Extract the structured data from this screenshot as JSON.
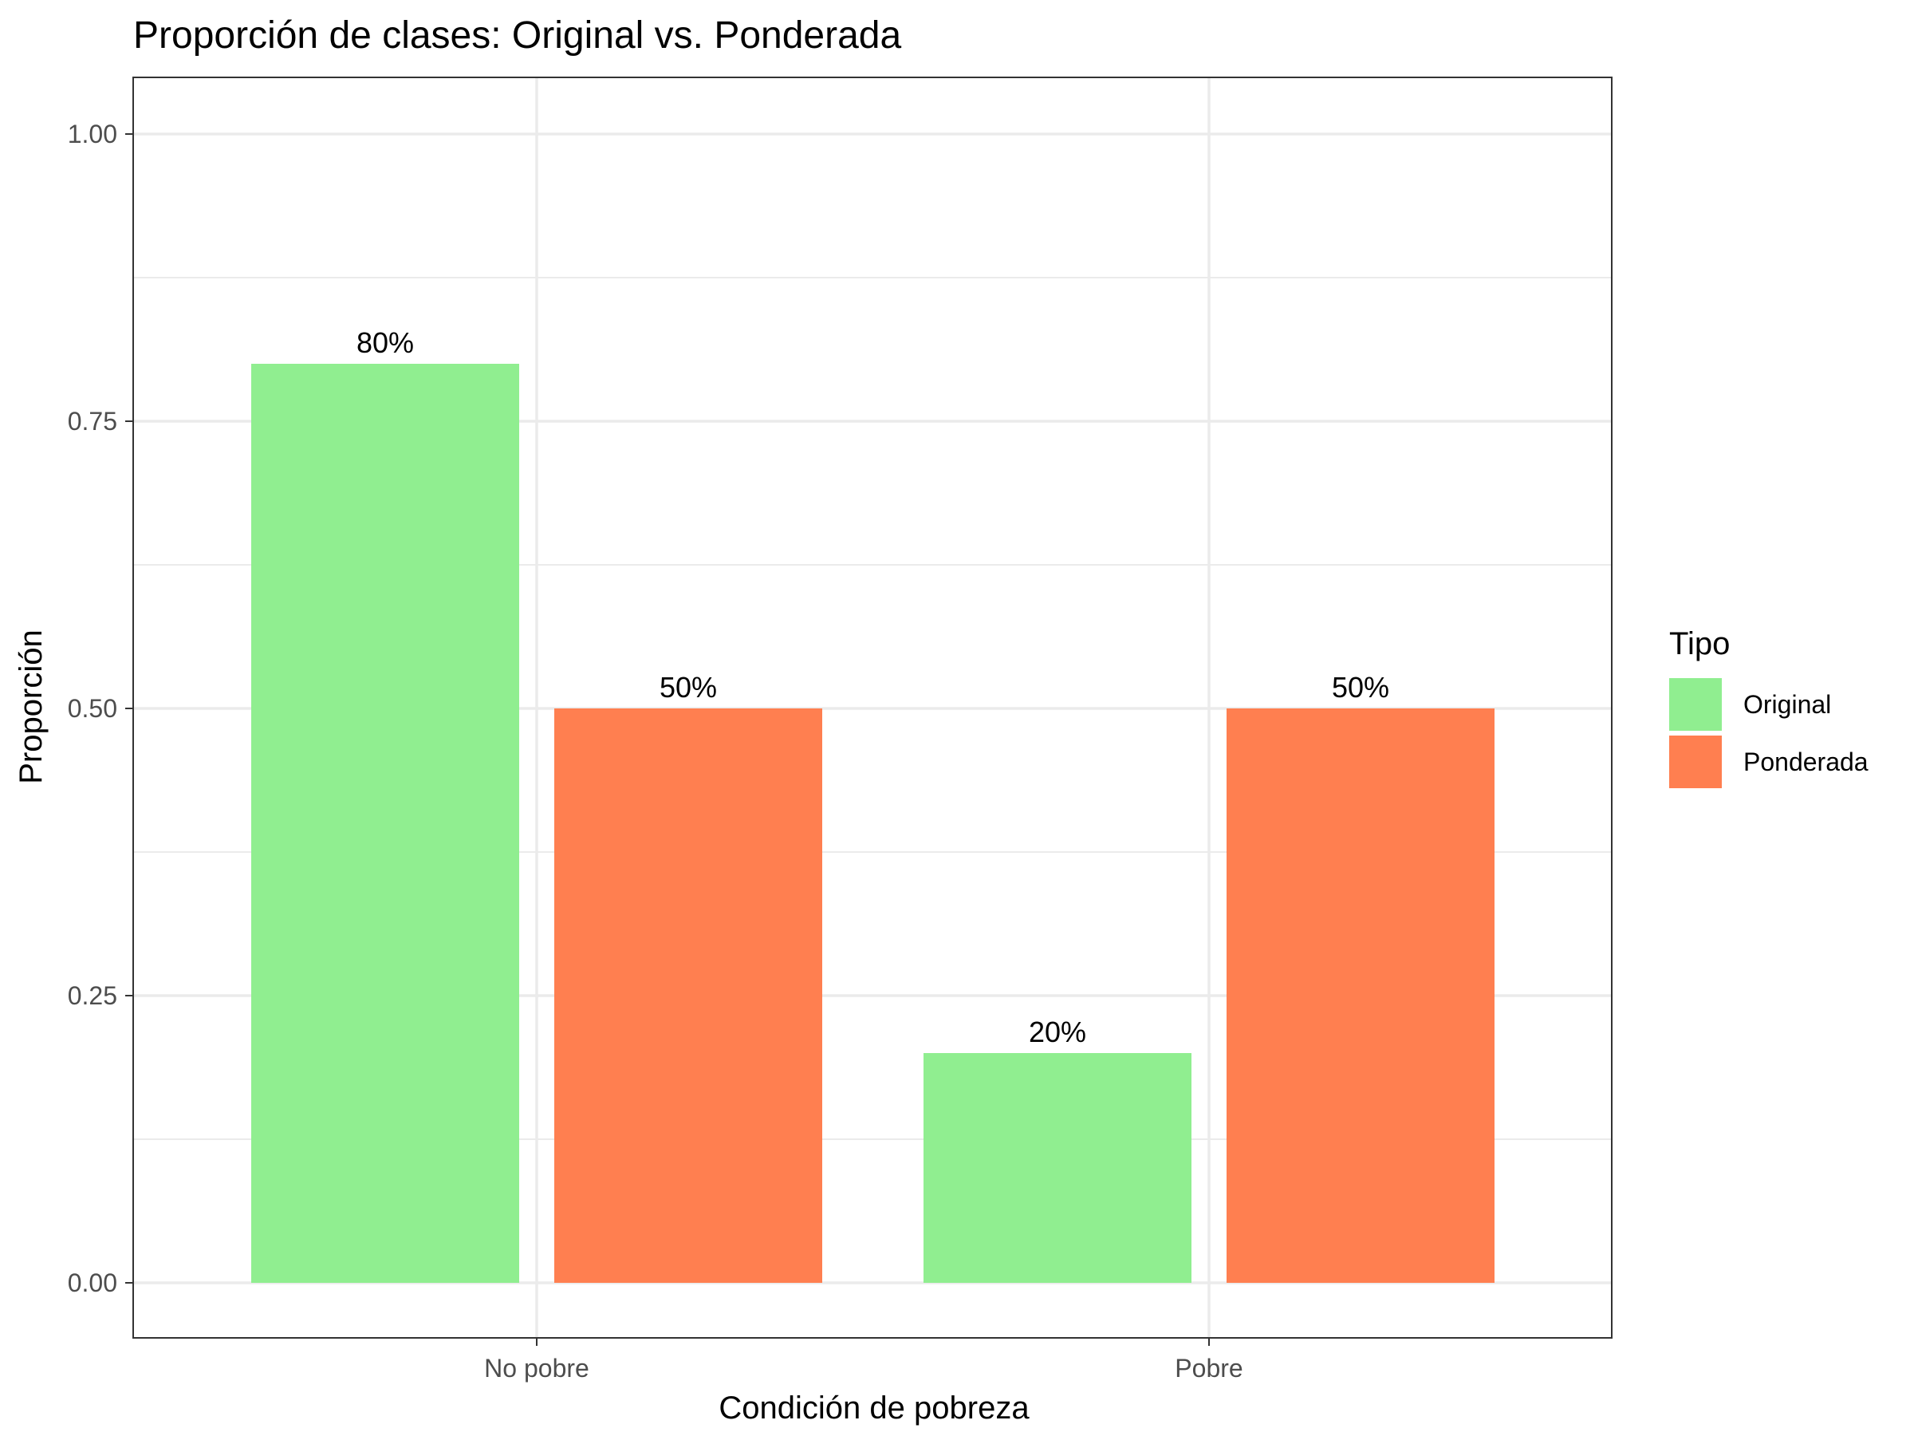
{
  "chart_data": {
    "type": "bar",
    "title": "Proporción de clases: Original vs. Ponderada",
    "xlabel": "Condición de pobreza",
    "ylabel": "Proporción",
    "categories": [
      "No pobre",
      "Pobre"
    ],
    "series": [
      {
        "name": "Original",
        "values": [
          0.8,
          0.2
        ],
        "labels": [
          "80%",
          "20%"
        ],
        "color": "#90EE90"
      },
      {
        "name": "Ponderada",
        "values": [
          0.5,
          0.5
        ],
        "labels": [
          "50%",
          "50%"
        ],
        "color": "#FF7F50"
      }
    ],
    "ylim": [
      0,
      1
    ],
    "yticks": [
      0.0,
      0.25,
      0.5,
      0.75,
      1.0
    ],
    "ytick_labels": [
      "0.00",
      "0.25",
      "0.50",
      "0.75",
      "1.00"
    ],
    "grid": true,
    "legend": {
      "title": "Tipo",
      "placement": "right"
    }
  }
}
